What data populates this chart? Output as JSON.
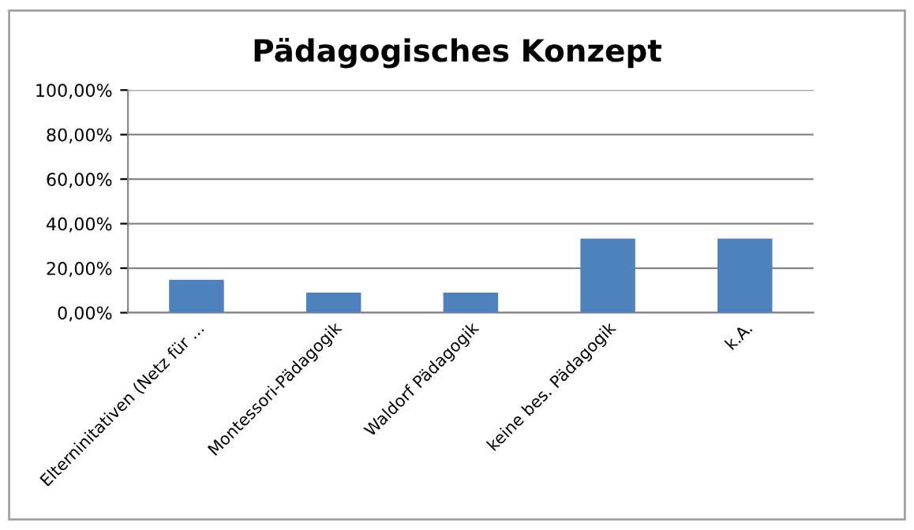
{
  "chart_data": {
    "type": "bar",
    "title": "Pädagogisches Konzept",
    "categories": [
      "Elterninitativen (Netz für ...",
      "Montessori-Pädagogik",
      "Waldorf Pädagogik",
      "keine bes. Pädagogik",
      "k.A."
    ],
    "values": [
      14.8,
      9.0,
      9.0,
      33.3,
      33.3
    ],
    "color": "#4f81bd",
    "ylim": [
      0,
      100
    ],
    "yticks": [
      {
        "value": 0,
        "label": "0,00%"
      },
      {
        "value": 20,
        "label": "20,00%"
      },
      {
        "value": 40,
        "label": "40,00%"
      },
      {
        "value": 60,
        "label": "60,00%"
      },
      {
        "value": 80,
        "label": "80,00%"
      },
      {
        "value": 100,
        "label": "100,00%"
      }
    ],
    "grid": "y",
    "legend": false
  }
}
